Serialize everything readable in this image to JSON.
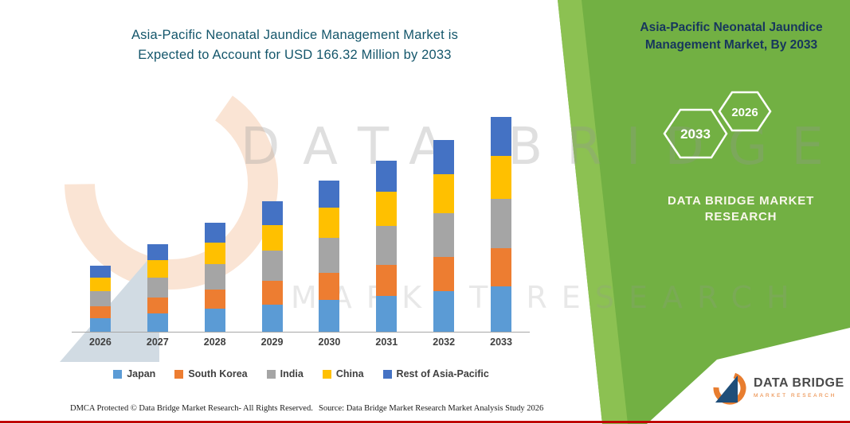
{
  "colors": {
    "panel_green": "#72B043",
    "panel_green_light": "#8CC152",
    "bottom_bar_red": "#C00000",
    "chart_title_teal": "#14566B",
    "side_title_navy": "#17365D",
    "logo_orange": "#E87D2F",
    "logo_blue": "#1F4E79"
  },
  "chart": {
    "title_line1": "Asia-Pacific Neonatal Jaundice Management Market is",
    "title_line2": "Expected to Account for USD 166.32 Million by 2033"
  },
  "chart_data": {
    "type": "bar",
    "stacked": true,
    "title": "Asia-Pacific Neonatal Jaundice Management Market is Expected to Account for USD 166.32 Million by 2033",
    "unit": "USD Million",
    "categories": [
      "2026",
      "2027",
      "2028",
      "2029",
      "2030",
      "2031",
      "2032",
      "2033"
    ],
    "series": [
      {
        "name": "Japan",
        "color": "#5B9BD5",
        "values": [
          10.7,
          14.2,
          17.7,
          21.2,
          24.6,
          27.8,
          31.2,
          34.9
        ]
      },
      {
        "name": "South Korea",
        "color": "#ED7D31",
        "values": [
          9.2,
          12.2,
          15.2,
          18.2,
          21.1,
          23.9,
          26.7,
          29.9
        ]
      },
      {
        "name": "India",
        "color": "#A5A5A5",
        "values": [
          11.8,
          15.6,
          19.4,
          23.2,
          26.9,
          30.5,
          34.2,
          38.3
        ]
      },
      {
        "name": "China",
        "color": "#FFC000",
        "values": [
          10.2,
          13.5,
          16.9,
          20.2,
          23.4,
          26.5,
          29.7,
          33.3
        ]
      },
      {
        "name": "Rest of Asia-Pacific",
        "color": "#4472C4",
        "values": [
          9.2,
          12.2,
          15.2,
          18.2,
          21.1,
          23.8,
          26.7,
          29.92
        ]
      }
    ],
    "totals": [
      51.1,
      67.7,
      84.4,
      101.0,
      117.1,
      132.5,
      148.5,
      166.32
    ],
    "ylim": [
      0,
      180
    ],
    "grid": false,
    "legend_position": "bottom"
  },
  "side_panel": {
    "title_line1": "Asia-Pacific Neonatal Jaundice",
    "title_line2": "Management Market, By 2033",
    "hexagon_year_left": "2033",
    "hexagon_year_right": "2026",
    "brand_line1": "DATA BRIDGE MARKET",
    "brand_line2": "RESEARCH"
  },
  "watermark": {
    "line1": "DATA BRIDGE",
    "line2": "MARKET RESEARCH"
  },
  "footer": {
    "dmca": "DMCA Protected © Data Bridge Market Research-  All Rights Reserved.",
    "source": "Source: Data Bridge Market Research  Market Analysis Study 2026"
  },
  "logo": {
    "title": "DATA BRIDGE",
    "subtitle": "MARKET RESEARCH"
  }
}
